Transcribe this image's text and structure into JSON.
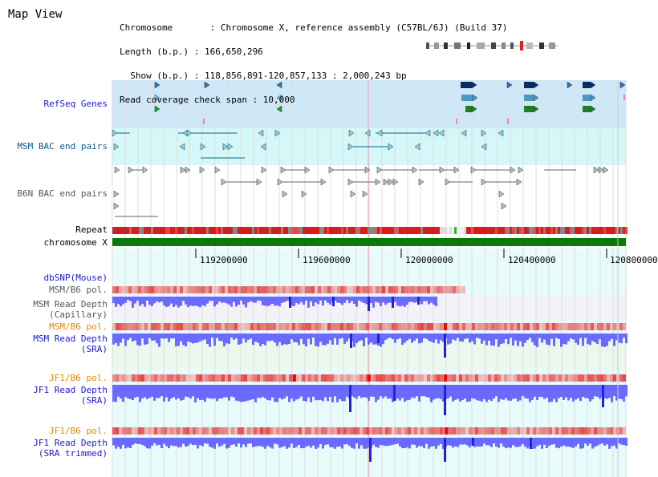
{
  "title": "Map View",
  "info": {
    "chromosome": "Chromosome       : Chromosome X, reference assembly (C57BL/6J) (Build 37)",
    "length": "Length (b.p.) : 166,650,296",
    "show": "  Show (b.p.) : 118,856,891-120,857,133 : 2,000,243 bp",
    "coverage": "Read coverage check span : 10,000"
  },
  "tracks": {
    "refseq": "RefSeq Genes",
    "msm_bac": "MSM BAC end pairs",
    "b6n_bac": "B6N BAC end pairs",
    "repeat": "Repeat",
    "chromosome": "chromosome X",
    "dbsnp": "dbSNP(Mouse)",
    "msm_b6_pol_1": "MSM/B6 pol.",
    "msm_depth_cap_1": "MSM Read Depth",
    "msm_depth_cap_2": "(Capillary)",
    "msm_b6_pol_2": "MSM/B6 pol.",
    "msm_depth_sra_1": "MSM Read Depth",
    "msm_depth_sra_2": "(SRA)",
    "jf1_b6_pol_1": "JF1/B6 pol.",
    "jf1_depth_sra_1": "JF1 Read Depth",
    "jf1_depth_sra_2": "(SRA)",
    "jf1_b6_pol_2": "JF1/B6 pol.",
    "jf1_depth_trim_1": "JF1 Read Depth",
    "jf1_depth_trim_2": "(SRA trimmed)"
  },
  "ticks": [
    "119200000",
    "119600000",
    "120000000",
    "120400000",
    "120800000"
  ],
  "colors": {
    "refseq_bg": "#cfe8f7",
    "bac_bg": "#d6f7f7",
    "depth_bg": "#e8fbfb",
    "chromosome_bar": "#0a7a0a",
    "depth_blue": "#6a6aff",
    "depth_dark": "#2222dd",
    "pol_red": "#f09090"
  }
}
